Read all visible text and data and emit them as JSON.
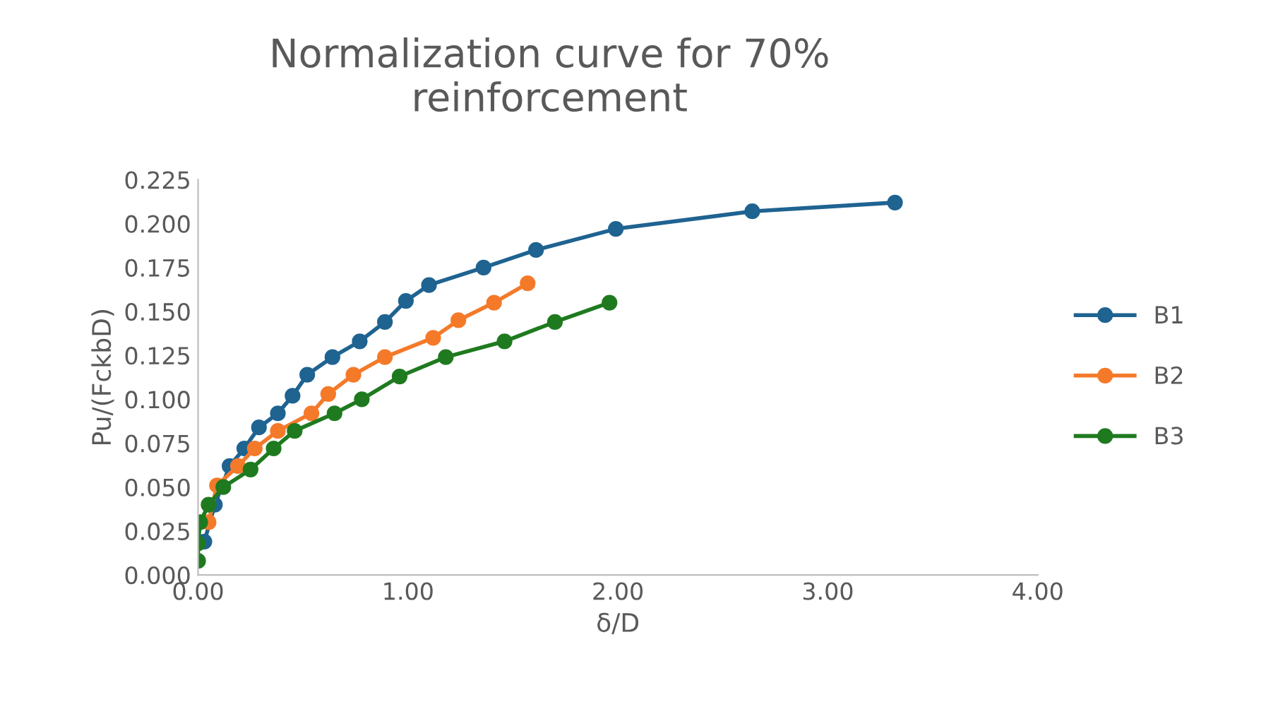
{
  "chart_data": {
    "type": "line",
    "title": "Normalization curve for 70%\nreinforcement",
    "xlabel": "δ/D",
    "ylabel": "Pu/(FckbD)",
    "xlim": [
      0,
      4
    ],
    "xticks": [
      {
        "value": 0,
        "label": "0.00"
      },
      {
        "value": 1,
        "label": "1.00"
      },
      {
        "value": 2,
        "label": "2.00"
      },
      {
        "value": 3,
        "label": "3.00"
      },
      {
        "value": 4,
        "label": "4.00"
      }
    ],
    "ylim": [
      0,
      0.225
    ],
    "yticks": [
      {
        "value": 0,
        "label": "0.000"
      },
      {
        "value": 0.025,
        "label": "0.025"
      },
      {
        "value": 0.05,
        "label": "0.050"
      },
      {
        "value": 0.075,
        "label": "0.075"
      },
      {
        "value": 0.1,
        "label": "0.100"
      },
      {
        "value": 0.125,
        "label": "0.125"
      },
      {
        "value": 0.15,
        "label": "0.150"
      },
      {
        "value": 0.175,
        "label": "0.175"
      },
      {
        "value": 0.2,
        "label": "0.200"
      },
      {
        "value": 0.225,
        "label": "0.225"
      }
    ],
    "grid": false,
    "legend": "right",
    "marker": "circle",
    "line_style": "solid",
    "series": [
      {
        "name": "B1",
        "color": "#1f6391",
        "x": [
          0.03,
          0.08,
          0.15,
          0.22,
          0.29,
          0.38,
          0.45,
          0.52,
          0.64,
          0.77,
          0.89,
          0.99,
          1.1,
          1.36,
          1.61,
          1.99,
          2.64,
          3.32
        ],
        "values": [
          0.019,
          0.04,
          0.062,
          0.072,
          0.084,
          0.092,
          0.102,
          0.114,
          0.124,
          0.133,
          0.144,
          0.156,
          0.165,
          0.175,
          0.185,
          0.197,
          0.207,
          0.212
        ]
      },
      {
        "name": "B2",
        "color": "#f47a2a",
        "x": [
          0.05,
          0.09,
          0.19,
          0.27,
          0.38,
          0.54,
          0.62,
          0.74,
          0.89,
          1.12,
          1.24,
          1.41,
          1.57
        ],
        "values": [
          0.03,
          0.051,
          0.062,
          0.072,
          0.082,
          0.092,
          0.103,
          0.114,
          0.124,
          0.135,
          0.145,
          0.155,
          0.166
        ]
      },
      {
        "name": "B3",
        "color": "#1f7a1f",
        "x": [
          0.0,
          0.0,
          0.01,
          0.05,
          0.12,
          0.25,
          0.36,
          0.46,
          0.65,
          0.78,
          0.96,
          1.18,
          1.46,
          1.7,
          1.96
        ],
        "values": [
          0.008,
          0.018,
          0.03,
          0.04,
          0.05,
          0.06,
          0.072,
          0.082,
          0.092,
          0.1,
          0.113,
          0.124,
          0.133,
          0.144,
          0.155
        ]
      }
    ]
  }
}
